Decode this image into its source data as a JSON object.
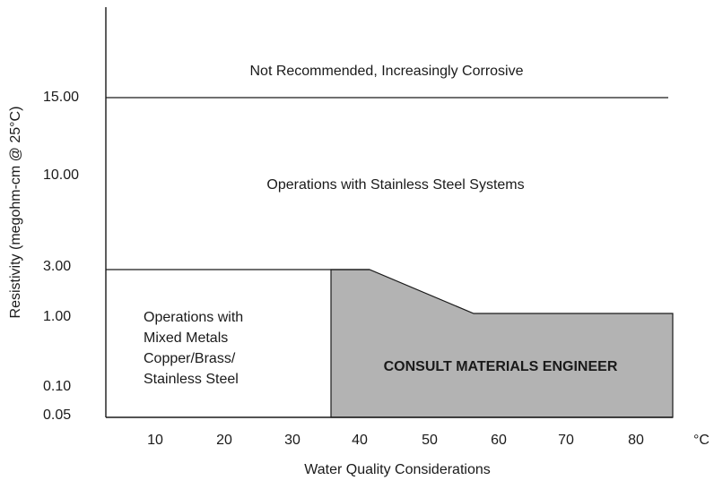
{
  "title": "Not Recommended, Increasingly Corrosive",
  "y_axis": {
    "label": "Resistivity (megohm-cm @ 25°C)",
    "ticks": [
      "15.00",
      "10.00",
      "3.00",
      "1.00",
      "0.10",
      "0.05"
    ]
  },
  "x_axis": {
    "label": "Water Quality Considerations",
    "ticks": [
      "10",
      "20",
      "30",
      "40",
      "50",
      "60",
      "70",
      "80"
    ],
    "unit": "°C"
  },
  "regions": {
    "stainless": "Operations with Stainless Steel Systems",
    "mixed": [
      "Operations  with",
      "Mixed Metals",
      "Copper/Brass/",
      "Stainless Steel"
    ],
    "consult": "CONSULT MATERIALS ENGINEER"
  }
}
